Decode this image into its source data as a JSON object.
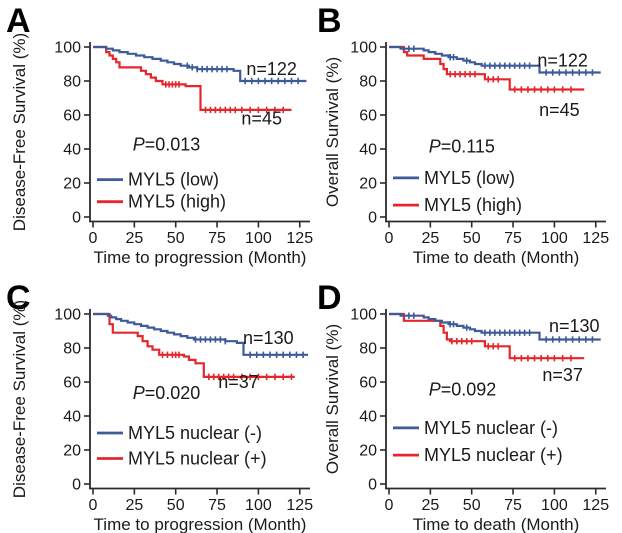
{
  "figure": {
    "background": "#ffffff",
    "axis_color": "#2b2b2b",
    "text_color": "#1a1a1a",
    "colors": {
      "low": "#3d5b99",
      "high": "#e5262b"
    }
  },
  "chart_data": [
    {
      "type": "line",
      "subtype": "kaplan-meier-step",
      "panel_label": "A",
      "xlabel": "Time to progression (Month)",
      "ylabel": "Disease-Free Survival (%)",
      "xlim": [
        0,
        130
      ],
      "ylim": [
        0,
        100
      ],
      "xticks": [
        0,
        25,
        50,
        75,
        100,
        125
      ],
      "yticks": [
        0,
        20,
        40,
        60,
        80,
        100
      ],
      "grid": false,
      "p_value_text": "P=0.013",
      "p_pos": [
        24,
        39
      ],
      "legend_y": [
        22,
        9
      ],
      "series": [
        {
          "name": "MYL5 (low)",
          "color_key": "low",
          "n_label": "n=122",
          "n_label_pos": [
            108,
            87
          ],
          "steps": [
            [
              0,
              100
            ],
            [
              8,
              99
            ],
            [
              12,
              98
            ],
            [
              16,
              97
            ],
            [
              21,
              96
            ],
            [
              26,
              95
            ],
            [
              31,
              94
            ],
            [
              36,
              93
            ],
            [
              41,
              92
            ],
            [
              45,
              91
            ],
            [
              49,
              90
            ],
            [
              53,
              89
            ],
            [
              58,
              88
            ],
            [
              63,
              87
            ],
            [
              85,
              86
            ],
            [
              89,
              80
            ],
            [
              129,
              80
            ]
          ],
          "censor_times": [
            57,
            60,
            63,
            66,
            69,
            72,
            75,
            78,
            81,
            92,
            96,
            100,
            104,
            108,
            112,
            116,
            120,
            124
          ]
        },
        {
          "name": "MYL5 (high)",
          "color_key": "high",
          "n_label": "n=45",
          "n_label_pos": [
            102,
            58
          ],
          "steps": [
            [
              0,
              100
            ],
            [
              8,
              97
            ],
            [
              10,
              95
            ],
            [
              12,
              93
            ],
            [
              14,
              91
            ],
            [
              16,
              88
            ],
            [
              29,
              86
            ],
            [
              32,
              84
            ],
            [
              35,
              82
            ],
            [
              38,
              80
            ],
            [
              42,
              78
            ],
            [
              56,
              77
            ],
            [
              65,
              63
            ],
            [
              120,
              63
            ]
          ],
          "censor_times": [
            44,
            46,
            48,
            50,
            52,
            68,
            71,
            74,
            77,
            80,
            83,
            86,
            90,
            95,
            100,
            105,
            110,
            115
          ]
        }
      ]
    },
    {
      "type": "line",
      "subtype": "kaplan-meier-step",
      "panel_label": "B",
      "xlabel": "Time to death (Month)",
      "ylabel": "Overall Survival (%)",
      "xlim": [
        0,
        130
      ],
      "ylim": [
        0,
        100
      ],
      "xticks": [
        0,
        25,
        50,
        75,
        100,
        125
      ],
      "yticks": [
        0,
        20,
        40,
        60,
        80,
        100
      ],
      "grid": false,
      "p_value_text": "P=0.115",
      "p_pos": [
        24,
        38
      ],
      "legend_y": [
        23,
        7
      ],
      "series": [
        {
          "name": "MYL5 (low)",
          "color_key": "low",
          "n_label": "n=122",
          "n_label_pos": [
            105,
            92
          ],
          "steps": [
            [
              0,
              100
            ],
            [
              7,
              99
            ],
            [
              21,
              98
            ],
            [
              24,
              97
            ],
            [
              28,
              96
            ],
            [
              32,
              95
            ],
            [
              36,
              94
            ],
            [
              41,
              93
            ],
            [
              45,
              92
            ],
            [
              49,
              91
            ],
            [
              52,
              90
            ],
            [
              56,
              89
            ],
            [
              91,
              85
            ],
            [
              128,
              85
            ]
          ],
          "censor_times": [
            12,
            15,
            37,
            39,
            47,
            58,
            61,
            64,
            67,
            70,
            73,
            76,
            79,
            82,
            85,
            95,
            99,
            103,
            107,
            111,
            115,
            119,
            123
          ]
        },
        {
          "name": "MYL5 (high)",
          "color_key": "high",
          "n_label": "n=45",
          "n_label_pos": [
            103,
            63
          ],
          "steps": [
            [
              0,
              100
            ],
            [
              9,
              97
            ],
            [
              11,
              95
            ],
            [
              21,
              93
            ],
            [
              31,
              90
            ],
            [
              33,
              87
            ],
            [
              35,
              84
            ],
            [
              58,
              81
            ],
            [
              73,
              75
            ],
            [
              118,
              75
            ]
          ],
          "censor_times": [
            37,
            40,
            43,
            46,
            49,
            52,
            60,
            63,
            66,
            76,
            80,
            84,
            88,
            92,
            96,
            100,
            105,
            110
          ]
        }
      ]
    },
    {
      "type": "line",
      "subtype": "kaplan-meier-step",
      "panel_label": "C",
      "xlabel": "Time to progression (Month)",
      "ylabel": "Disease-Free Survival (%)",
      "xlim": [
        0,
        130
      ],
      "ylim": [
        0,
        100
      ],
      "xticks": [
        0,
        25,
        50,
        75,
        100,
        125
      ],
      "yticks": [
        0,
        20,
        40,
        60,
        80,
        100
      ],
      "grid": false,
      "p_value_text": "P=0.020",
      "p_pos": [
        24,
        50
      ],
      "legend_y": [
        30,
        15
      ],
      "series": [
        {
          "name": "MYL5 nuclear (-)",
          "color_key": "low",
          "n_label": "n=130",
          "n_label_pos": [
            106,
            86
          ],
          "steps": [
            [
              0,
              100
            ],
            [
              9,
              99
            ],
            [
              11,
              98
            ],
            [
              14,
              97
            ],
            [
              17,
              96
            ],
            [
              21,
              95
            ],
            [
              25,
              94
            ],
            [
              29,
              93
            ],
            [
              33,
              92
            ],
            [
              37,
              91
            ],
            [
              41,
              90
            ],
            [
              45,
              89
            ],
            [
              49,
              88
            ],
            [
              53,
              87
            ],
            [
              57,
              86
            ],
            [
              61,
              85
            ],
            [
              80,
              84
            ],
            [
              87,
              83
            ],
            [
              91,
              76
            ],
            [
              130,
              76
            ]
          ],
          "censor_times": [
            62,
            65,
            68,
            71,
            74,
            77,
            80,
            95,
            99,
            103,
            107,
            111,
            115,
            119,
            123,
            127
          ]
        },
        {
          "name": "MYL5 nuclear (+)",
          "color_key": "high",
          "n_label": "n=37",
          "n_label_pos": [
            88,
            60
          ],
          "steps": [
            [
              0,
              100
            ],
            [
              10,
              94
            ],
            [
              12,
              89
            ],
            [
              27,
              87
            ],
            [
              30,
              84
            ],
            [
              33,
              81
            ],
            [
              36,
              79
            ],
            [
              40,
              76
            ],
            [
              55,
              75
            ],
            [
              58,
              73
            ],
            [
              62,
              71
            ],
            [
              67,
              63
            ],
            [
              122,
              63
            ]
          ],
          "censor_times": [
            42,
            45,
            48,
            50,
            52,
            70,
            73,
            76,
            79,
            82,
            85,
            90,
            95,
            100,
            105,
            110,
            115,
            120
          ]
        }
      ]
    },
    {
      "type": "line",
      "subtype": "kaplan-meier-step",
      "panel_label": "D",
      "xlabel": "Time to death (Month)",
      "ylabel": "Overall Survival (%)",
      "xlim": [
        0,
        130
      ],
      "ylim": [
        0,
        100
      ],
      "xticks": [
        0,
        25,
        50,
        75,
        100,
        125
      ],
      "yticks": [
        0,
        20,
        40,
        60,
        80,
        100
      ],
      "grid": false,
      "p_value_text": "P=0.092",
      "p_pos": [
        24,
        52
      ],
      "legend_y": [
        33,
        17
      ],
      "series": [
        {
          "name": "MYL5 nuclear (-)",
          "color_key": "low",
          "n_label": "n=130",
          "n_label_pos": [
            112,
            93
          ],
          "steps": [
            [
              0,
              100
            ],
            [
              7,
              99
            ],
            [
              21,
              98
            ],
            [
              24,
              97
            ],
            [
              28,
              96
            ],
            [
              32,
              95
            ],
            [
              36,
              94
            ],
            [
              41,
              93
            ],
            [
              45,
              92
            ],
            [
              49,
              91
            ],
            [
              52,
              90
            ],
            [
              56,
              89
            ],
            [
              91,
              85
            ],
            [
              128,
              85
            ]
          ],
          "censor_times": [
            12,
            15,
            37,
            39,
            47,
            58,
            61,
            64,
            67,
            70,
            73,
            76,
            79,
            82,
            85,
            95,
            99,
            103,
            107,
            111,
            115,
            119,
            123
          ]
        },
        {
          "name": "MYL5 nuclear (+)",
          "color_key": "high",
          "n_label": "n=37",
          "n_label_pos": [
            105,
            64
          ],
          "steps": [
            [
              0,
              100
            ],
            [
              9,
              96
            ],
            [
              31,
              93
            ],
            [
              33,
              89
            ],
            [
              35,
              85
            ],
            [
              37,
              84
            ],
            [
              58,
              81
            ],
            [
              73,
              74
            ],
            [
              118,
              74
            ]
          ],
          "censor_times": [
            38,
            41,
            44,
            47,
            50,
            60,
            63,
            66,
            76,
            80,
            84,
            88,
            92,
            96,
            100,
            105,
            110
          ]
        }
      ]
    }
  ]
}
